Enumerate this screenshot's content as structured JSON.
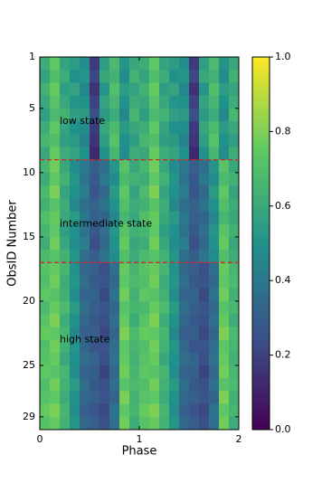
{
  "chart_data": {
    "type": "heatmap",
    "xlabel": "Phase",
    "ylabel": "ObsID Number",
    "xlim": [
      0,
      2
    ],
    "xticks": [
      0,
      1,
      2
    ],
    "ylim": [
      1,
      30
    ],
    "yticks": [
      1,
      5,
      10,
      15,
      20,
      25,
      29
    ],
    "colormap": "viridis",
    "colorbar": {
      "lim": [
        0,
        1
      ],
      "ticks": [
        {
          "value": 0,
          "label": "0.0"
        },
        {
          "value": 0.2,
          "label": "0.2"
        },
        {
          "value": 0.4,
          "label": "0.4"
        },
        {
          "value": 0.6,
          "label": "0.6"
        },
        {
          "value": 0.8,
          "label": "0.8"
        },
        {
          "value": 1,
          "label": "1.0"
        }
      ]
    },
    "hlines": [
      9,
      17
    ],
    "hline_color": "#d62728",
    "annotations": [
      {
        "text": "low state",
        "x": 0.2,
        "y": 6
      },
      {
        "text": "intermediate state",
        "x": 0.2,
        "y": 14
      },
      {
        "text": "high state",
        "x": 0.2,
        "y": 23
      }
    ],
    "annotation_color": "#ff0000",
    "values": [
      [
        0.62,
        0.74,
        0.58,
        0.55,
        0.48,
        0.18,
        0.56,
        0.68,
        0.52,
        0.6
      ],
      [
        0.58,
        0.7,
        0.62,
        0.5,
        0.52,
        0.22,
        0.6,
        0.64,
        0.48,
        0.64
      ],
      [
        0.64,
        0.76,
        0.56,
        0.58,
        0.46,
        0.15,
        0.52,
        0.7,
        0.55,
        0.58
      ],
      [
        0.6,
        0.72,
        0.6,
        0.52,
        0.5,
        0.2,
        0.58,
        0.66,
        0.5,
        0.62
      ],
      [
        0.56,
        0.68,
        0.64,
        0.56,
        0.54,
        0.24,
        0.54,
        0.62,
        0.46,
        0.66
      ],
      [
        0.62,
        0.74,
        0.58,
        0.5,
        0.48,
        0.18,
        0.6,
        0.68,
        0.54,
        0.6
      ],
      [
        0.66,
        0.7,
        0.56,
        0.54,
        0.44,
        0.16,
        0.56,
        0.72,
        0.5,
        0.56
      ],
      [
        0.6,
        0.76,
        0.62,
        0.58,
        0.5,
        0.12,
        0.5,
        0.66,
        0.48,
        0.62
      ],
      [
        0.66,
        0.78,
        0.6,
        0.48,
        0.4,
        0.3,
        0.36,
        0.52,
        0.72,
        0.6
      ],
      [
        0.62,
        0.74,
        0.64,
        0.52,
        0.38,
        0.28,
        0.4,
        0.48,
        0.68,
        0.64
      ],
      [
        0.68,
        0.8,
        0.58,
        0.5,
        0.42,
        0.26,
        0.34,
        0.54,
        0.74,
        0.58
      ],
      [
        0.64,
        0.72,
        0.62,
        0.46,
        0.36,
        0.32,
        0.38,
        0.5,
        0.7,
        0.62
      ],
      [
        0.7,
        0.76,
        0.6,
        0.54,
        0.4,
        0.3,
        0.32,
        0.46,
        0.66,
        0.6
      ],
      [
        0.66,
        0.74,
        0.56,
        0.5,
        0.38,
        0.28,
        0.36,
        0.52,
        0.72,
        0.64
      ],
      [
        0.62,
        0.78,
        0.6,
        0.48,
        0.42,
        0.24,
        0.34,
        0.5,
        0.76,
        0.6
      ],
      [
        0.68,
        0.72,
        0.64,
        0.52,
        0.36,
        0.3,
        0.38,
        0.48,
        0.7,
        0.62
      ],
      [
        0.72,
        0.76,
        0.66,
        0.5,
        0.34,
        0.3,
        0.24,
        0.36,
        0.76,
        0.66
      ],
      [
        0.7,
        0.78,
        0.62,
        0.52,
        0.36,
        0.28,
        0.26,
        0.34,
        0.74,
        0.68
      ],
      [
        0.74,
        0.72,
        0.64,
        0.48,
        0.32,
        0.32,
        0.22,
        0.38,
        0.78,
        0.64
      ],
      [
        0.68,
        0.76,
        0.68,
        0.54,
        0.36,
        0.3,
        0.26,
        0.34,
        0.72,
        0.66
      ],
      [
        0.72,
        0.8,
        0.62,
        0.5,
        0.34,
        0.28,
        0.24,
        0.36,
        0.76,
        0.62
      ],
      [
        0.76,
        0.74,
        0.66,
        0.46,
        0.3,
        0.3,
        0.22,
        0.32,
        0.8,
        0.68
      ],
      [
        0.7,
        0.78,
        0.64,
        0.52,
        0.34,
        0.26,
        0.26,
        0.36,
        0.74,
        0.66
      ],
      [
        0.72,
        0.76,
        0.6,
        0.5,
        0.36,
        0.32,
        0.24,
        0.38,
        0.76,
        0.64
      ],
      [
        0.74,
        0.72,
        0.66,
        0.48,
        0.32,
        0.3,
        0.2,
        0.34,
        0.78,
        0.66
      ],
      [
        0.7,
        0.78,
        0.64,
        0.54,
        0.36,
        0.28,
        0.24,
        0.36,
        0.72,
        0.68
      ],
      [
        0.72,
        0.74,
        0.62,
        0.5,
        0.34,
        0.3,
        0.26,
        0.32,
        0.8,
        0.64
      ],
      [
        0.76,
        0.8,
        0.66,
        0.48,
        0.3,
        0.26,
        0.22,
        0.38,
        0.74,
        0.66
      ],
      [
        0.72,
        0.76,
        0.64,
        0.52,
        0.34,
        0.3,
        0.24,
        0.36,
        0.78,
        0.62
      ]
    ]
  }
}
